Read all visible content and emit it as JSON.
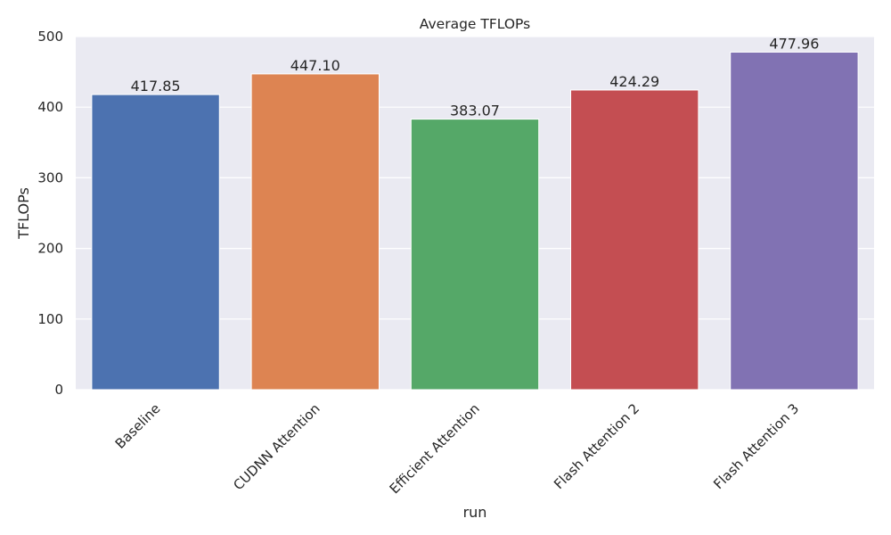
{
  "chart_data": {
    "type": "bar",
    "title": "Average TFLOPs",
    "xlabel": "run",
    "ylabel": "TFLOPs",
    "categories": [
      "Baseline",
      "CUDNN Attention",
      "Efficient Attention",
      "Flash Attention 2",
      "Flash Attention 3"
    ],
    "values": [
      417.85,
      447.1,
      383.07,
      424.29,
      477.96
    ],
    "value_labels": [
      "417.85",
      "447.10",
      "383.07",
      "424.29",
      "477.96"
    ],
    "colors": [
      "#4c72b0",
      "#dd8452",
      "#55a868",
      "#c44e52",
      "#8172b3"
    ],
    "ylim": [
      0,
      500
    ],
    "yticks": [
      0,
      100,
      200,
      300,
      400,
      500
    ],
    "grid": true,
    "background": "#eaeaf2",
    "legend": "none"
  }
}
